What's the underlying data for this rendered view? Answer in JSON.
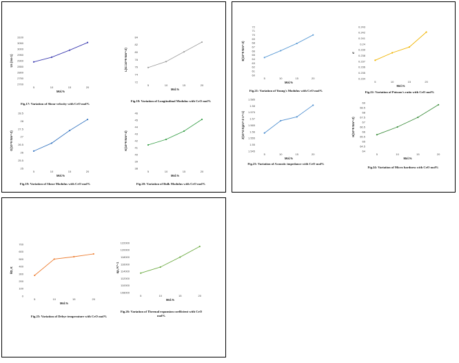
{
  "captions": {
    "fig17": "Fig.17: Variation of Shear velocity with CeO mol%",
    "fig18": "Fig.18: Variation of Longitudinal Modulus with CeO mol%",
    "fig19": "Fig.19: Variation of Shear Modulus with CeO mol%",
    "fig20": "Fig.20: Variation of Bulk Modulus with CeO mol%",
    "fig21": "Fig.21: Variation of Young's Modulus with CeO mol%",
    "fig22": "Fig.22: Variation of Poisson's ratio with CeO mol%",
    "fig23": "Fig.23: Variation of Acoustic impedance with CeO mol%",
    "fig24": "Fig.24: Variation of Micro hardness with CeO mol%",
    "fig25": "Fig.25: Variation of Debye temperature with CeO mol%",
    "fig26": "Fig.26: Variation of Thermal expansion coefficient with CeO mol%"
  },
  "chart_data": [
    {
      "id": "fig17",
      "type": "line",
      "color": "#3b3bb0",
      "x": [
        5,
        10,
        15,
        20
      ],
      "values": [
        2890,
        2930,
        2990,
        3055
      ],
      "ylim": [
        2700,
        3100
      ],
      "yticks": [
        2700,
        2750,
        2800,
        2850,
        2900,
        2950,
        3000,
        3050,
        3100
      ],
      "xticks": [
        5,
        10,
        15,
        20
      ],
      "xlabel": "Mol.%",
      "ylabel": "Us (ms-1)"
    },
    {
      "id": "fig18",
      "type": "line",
      "color": "#a0a0a0",
      "x": [
        5,
        10,
        15,
        20
      ],
      "values": [
        75.9,
        77.5,
        80.1,
        82.7
      ],
      "ylim": [
        72,
        84
      ],
      "yticks": [
        72,
        74,
        76,
        78,
        80,
        82,
        84
      ],
      "xticks": [
        5,
        10,
        15,
        20
      ],
      "xlabel": "Mol.%",
      "ylabel": "L(G=10^9 Nm^-2)"
    },
    {
      "id": "fig19",
      "type": "line",
      "color": "#3a78c2",
      "x": [
        5,
        10,
        15,
        20
      ],
      "values": [
        26.1,
        26.6,
        27.4,
        28.1
      ],
      "ylim": [
        25,
        28.5
      ],
      "yticks": [
        25,
        25.5,
        26,
        26.5,
        27,
        27.5,
        28,
        28.5
      ],
      "xticks": [
        5,
        10,
        15,
        20
      ],
      "xlabel": "Mol.%",
      "ylabel": "G(10^9 Nm^-2)"
    },
    {
      "id": "fig20",
      "type": "line",
      "color": "#3aa04a",
      "x": [
        5,
        10,
        15,
        20
      ],
      "values": [
        41.4,
        42.2,
        43.4,
        45.1
      ],
      "ylim": [
        38,
        46
      ],
      "yticks": [
        38,
        39,
        40,
        41,
        42,
        43,
        44,
        45,
        46
      ],
      "xticks": [
        5,
        10,
        15,
        20
      ],
      "xlabel": "Mol.%",
      "ylabel": "K(10^9 Nm^-2)"
    },
    {
      "id": "fig21",
      "type": "line",
      "color": "#5b9bd5",
      "x": [
        5,
        10,
        15,
        20
      ],
      "values": [
        64.4,
        66.1,
        67.9,
        70
      ],
      "ylim": [
        60,
        72
      ],
      "yticks": [
        60,
        61,
        62,
        63,
        64,
        65,
        66,
        67,
        68,
        69,
        70,
        71,
        72
      ],
      "xticks": [
        5,
        10,
        15,
        20
      ],
      "xlabel": "Mol.%",
      "ylabel": "E(10^9 Nm^-2)"
    },
    {
      "id": "fig22",
      "type": "line",
      "color": "#f0b400",
      "x": [
        5,
        10,
        15,
        20
      ],
      "values": [
        0.2372,
        0.2385,
        0.2395,
        0.2421
      ],
      "ylim": [
        0.234,
        0.243
      ],
      "yticks": [
        0.234,
        0.235,
        0.236,
        0.237,
        0.238,
        0.239,
        0.24,
        0.241,
        0.242,
        0.243
      ],
      "xticks": [
        5,
        10,
        15,
        20
      ],
      "xlabel": "Mol.%",
      "ylabel": "σ"
    },
    {
      "id": "fig23",
      "type": "line",
      "color": "#4f8fd0",
      "x": [
        5,
        10,
        15,
        20
      ],
      "values": [
        1.559,
        1.5685,
        1.5715,
        1.5805
      ],
      "ylim": [
        1.545,
        1.585
      ],
      "yticks": [
        1.545,
        1.55,
        1.555,
        1.56,
        1.565,
        1.57,
        1.575,
        1.58,
        1.585
      ],
      "xticks": [
        5,
        10,
        15,
        20
      ],
      "xlabel": "Mol.%",
      "ylabel": "Z(10^4 Kgm^-2 s^-1)"
    },
    {
      "id": "fig24",
      "type": "line",
      "color": "#3f8f3f",
      "x": [
        5,
        10,
        15,
        20
      ],
      "values": [
        65.7,
        66.5,
        67.5,
        68.8
      ],
      "ylim": [
        64,
        69
      ],
      "yticks": [
        64,
        64.5,
        65,
        65.5,
        66,
        66.5,
        67,
        67.5,
        68,
        68.5,
        69
      ],
      "xticks": [
        5,
        10,
        15,
        20
      ],
      "xlabel": "Mol.%",
      "ylabel": "H(10^9 Nm^-2)"
    },
    {
      "id": "fig25",
      "type": "line",
      "color": "#ed7d31",
      "x": [
        5,
        10,
        15,
        20
      ],
      "values": [
        280,
        500,
        532,
        570
      ],
      "ylim": [
        0,
        700
      ],
      "yticks": [
        0,
        100,
        200,
        300,
        400,
        500,
        600,
        700
      ],
      "xticks": [
        5,
        10,
        15,
        20
      ],
      "xlabel": "Mol.%",
      "ylabel": "θD, K"
    },
    {
      "id": "fig26",
      "type": "line",
      "color": "#70ad47",
      "x": [
        5,
        10,
        15,
        20
      ],
      "values": [
        113500,
        115200,
        118000,
        121000
      ],
      "ylim": [
        108000,
        122000
      ],
      "yticks": [
        108000,
        110000,
        112000,
        114000,
        116000,
        118000,
        120000,
        122000
      ],
      "xticks": [
        5,
        10,
        15,
        20
      ],
      "xlabel": "Mol.%",
      "ylabel": "αp, K^-1"
    }
  ]
}
